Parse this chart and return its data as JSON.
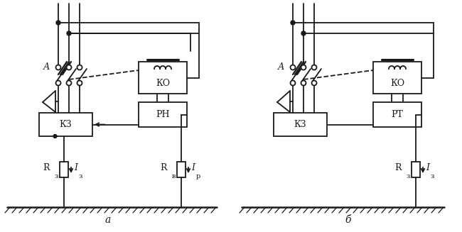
{
  "bg_color": "#ffffff",
  "line_color": "#1a1a1a",
  "fig_width": 6.5,
  "fig_height": 3.27,
  "dpi": 100,
  "label_a": "а",
  "label_b": "б",
  "label_A": "А",
  "label_KO": "КО",
  "label_KZ_a": "КЗ",
  "label_KZ_b": "КЗ",
  "label_RN": "РН",
  "label_RT": "РТ",
  "label_Rz_a": "R",
  "label_Rz_a_sub": "з",
  "label_Iz_a": "I",
  "label_Iz_a_sub": "з",
  "label_Rv": "R",
  "label_Rv_sub": "в",
  "label_Ip": "I",
  "label_Ip_sub": "р",
  "label_Rz_b": "R",
  "label_Rz_b_sub": "з",
  "label_Iz_b": "I",
  "label_Iz_b_sub": "з"
}
